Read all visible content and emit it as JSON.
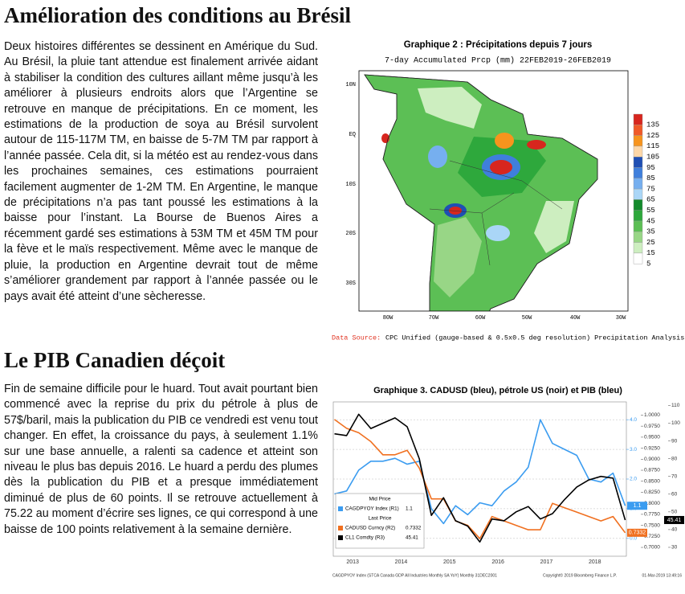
{
  "section1": {
    "title": "Amélioration des conditions au Brésil",
    "paragraph": "Deux histoires différentes se dessinent en Amérique du Sud. Au Brésil, la pluie tant attendue est finalement arrivée aidant à stabiliser la condition des cultures aillant même jusqu’à les améliorer à plusieurs endroits alors que l’Argentine se retrouve en manque de précipitations. En ce moment, les estimations de la production de soya au Brésil survolent autour de 115-117M TM, en baisse de 5-7M TM par rapport à l’année passée. Cela dit, si la météo est au rendez-vous dans les prochaines semaines, ces estimations pourraient facilement augmenter de 1-2M TM. En Argentine, le manque de précipitations n’a pas tant poussé les estimations à la baisse pour l’instant. La Bourse de Buenos Aires a récemment gardé ses estimations à 53M TM et 45M TM pour la fève et le maïs respectivement. Même avec le manque de pluie, la production en Argentine devrait tout de même s’améliorer grandement par rapport à l’année passée ou le pays avait été atteint d’une sècheresse.",
    "figure": {
      "title": "Graphique 2 :  Précipitations depuis 7 jours",
      "subtitle": "7-day Accumulated Prcp (mm) 22FEB2019-26FEB2019",
      "lat_labels": [
        "10N",
        "EQ",
        "10S",
        "20S",
        "30S"
      ],
      "lon_labels": [
        "80W",
        "70W",
        "60W",
        "50W",
        "40W",
        "30W"
      ],
      "legend": {
        "levels": [
          135,
          125,
          115,
          105,
          95,
          85,
          75,
          65,
          55,
          45,
          35,
          25,
          15,
          5
        ],
        "colors": [
          "#d7261e",
          "#f05a28",
          "#f7941d",
          "#fdd7a8",
          "#1f4fb4",
          "#3f7fdc",
          "#76afef",
          "#aad6f7",
          "#138a2c",
          "#2ea83c",
          "#5cbf55",
          "#98d686",
          "#cdeec0",
          "#ffffff"
        ]
      },
      "source_label": "Data Source:",
      "source": "CPC Unified (gauge-based & 0.5x0.5 deg resolution) Precipitation Analysis"
    }
  },
  "section2": {
    "title": "Le PIB Canadien déçoit",
    "paragraph": "Fin de semaine difficile pour le huard. Tout avait pourtant bien commencé avec la reprise du prix du pétrole à plus de 57$/baril, mais la publication du PIB ce vendredi est venu tout changer. En effet, la croissance du pays, à seulement 1.1% sur une base annuelle, a ralenti sa cadence et atteint son niveau le plus bas depuis 2016. Le huard a perdu des plumes dès la publication du PIB et a presque immédiatement diminué de plus de 60 points. Il se retrouve actuellement à 75.22 au moment d’écrire ses lignes, ce qui correspond à une baisse de 100 points relativement à la semaine dernière.",
    "chart_data": {
      "type": "line",
      "title": "Graphique 3. CADUSD (bleu), pétrole US (noir) et PIB (bleu)",
      "x": [
        2013.125,
        2013.375,
        2013.625,
        2013.875,
        2014.125,
        2014.375,
        2014.625,
        2014.875,
        2015.125,
        2015.375,
        2015.625,
        2015.875,
        2016.125,
        2016.375,
        2016.625,
        2016.875,
        2017.125,
        2017.375,
        2017.625,
        2017.875,
        2018.125,
        2018.375,
        2018.625,
        2018.875,
        2019.125
      ],
      "xlim": [
        2013.1,
        2019.15
      ],
      "xticks": [
        {
          "value": 2013.5,
          "label": "2013"
        },
        {
          "value": 2014.5,
          "label": "2014"
        },
        {
          "value": 2015.5,
          "label": "2015"
        },
        {
          "value": 2016.5,
          "label": "2016"
        },
        {
          "value": 2017.5,
          "label": "2017"
        },
        {
          "value": 2018.5,
          "label": "2018"
        }
      ],
      "ylim": [
        -0.6,
        4.6
      ],
      "yticks": [
        {
          "value": 0,
          "label": "0.0"
        },
        {
          "value": 1,
          "label": "1.0"
        },
        {
          "value": 2,
          "label": "2.0"
        },
        {
          "value": 3,
          "label": "3.0"
        },
        {
          "value": 4,
          "label": "4.0"
        }
      ],
      "y2lim": [
        0.68,
        1.03
      ],
      "y2ticks": [
        {
          "value": 0.7,
          "label": "0.7000"
        },
        {
          "value": 0.725,
          "label": "0.7250"
        },
        {
          "value": 0.75,
          "label": "0.7500"
        },
        {
          "value": 0.775,
          "label": "0.7750"
        },
        {
          "value": 0.8,
          "label": "0.8000"
        },
        {
          "value": 0.825,
          "label": "0.8250"
        },
        {
          "value": 0.85,
          "label": "0.8500"
        },
        {
          "value": 0.875,
          "label": "0.8750"
        },
        {
          "value": 0.9,
          "label": "0.9000"
        },
        {
          "value": 0.925,
          "label": "0.9250"
        },
        {
          "value": 0.95,
          "label": "0.9500"
        },
        {
          "value": 0.975,
          "label": "0.9750"
        },
        {
          "value": 1,
          "label": "1.0000"
        }
      ],
      "y3lim": [
        25,
        112
      ],
      "y3ticks": [
        30,
        40,
        50,
        60,
        70,
        80,
        90,
        100,
        110
      ],
      "series": [
        {
          "name": "CAGDPYOY Index (R1)",
          "color": "#3b9cf0",
          "axis": "y",
          "value_label": "1.1",
          "values": [
            1.5,
            1.6,
            2.3,
            2.6,
            2.6,
            2.7,
            2.5,
            2.6,
            1.0,
            0.5,
            1.1,
            0.8,
            1.2,
            1.1,
            1.6,
            1.9,
            2.4,
            4.0,
            3.2,
            3.0,
            2.8,
            2.0,
            1.9,
            2.2,
            1.1
          ]
        },
        {
          "name": "CADUSD Curncy (R2)",
          "color": "#f07020",
          "axis": "y2",
          "value_label": "0.7332",
          "values": [
            0.99,
            0.97,
            0.96,
            0.94,
            0.91,
            0.91,
            0.92,
            0.88,
            0.81,
            0.81,
            0.76,
            0.75,
            0.72,
            0.77,
            0.76,
            0.75,
            0.74,
            0.74,
            0.8,
            0.79,
            0.78,
            0.77,
            0.76,
            0.77,
            0.7332
          ]
        },
        {
          "name": "CL1 Comdty (R3)",
          "color": "#000000",
          "axis": "y3",
          "value_label": "45.41",
          "values": [
            94,
            93,
            105,
            97,
            100,
            103,
            98,
            80,
            48,
            58,
            45,
            42,
            33,
            46,
            45,
            50,
            53,
            46,
            49,
            57,
            64,
            68,
            70,
            69,
            45.41
          ]
        }
      ],
      "legend_headers": [
        "Mid Price",
        "Last Price"
      ],
      "footer": [
        "CAGDPYOY Index (STCA Canada GDP All Industries Monthly SA YoY) Monthly 31DEC2001",
        "Copyright© 2019 Bloomberg Finance L.P.",
        "01-Mar-2019 13:49:16"
      ]
    }
  }
}
